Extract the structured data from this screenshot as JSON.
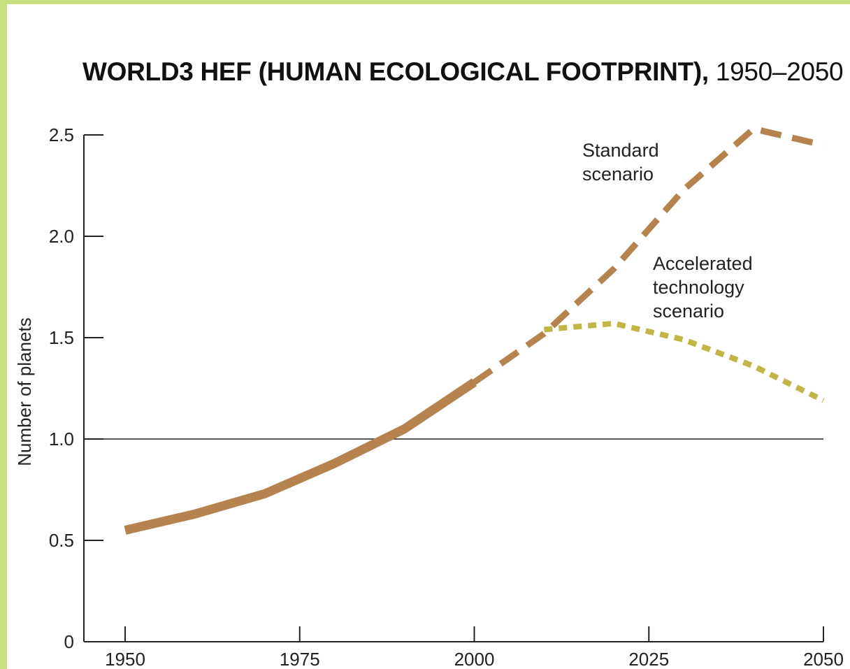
{
  "chart_data": {
    "type": "line",
    "title_bold": "WORLD3 HEF (HUMAN ECOLOGICAL FOOTPRINT),",
    "title_years": "1950–2050",
    "ylabel": "Number of planets",
    "xlabel": "",
    "xlim": [
      1950,
      2050
    ],
    "ylim": [
      0,
      2.5
    ],
    "x_ticks": [
      "1950",
      "1975",
      "2000",
      "2025",
      "2050"
    ],
    "y_ticks": [
      "0",
      "0.5",
      "1.0",
      "1.5",
      "2.0",
      "2.5"
    ],
    "reference_line": 1.0,
    "grid": false,
    "series": [
      {
        "key": "historical",
        "style": "solid",
        "color": "#b5834e",
        "x": [
          1950,
          1960,
          1970,
          1980,
          1990,
          2000
        ],
        "y": [
          0.55,
          0.63,
          0.73,
          0.88,
          1.05,
          1.28
        ]
      },
      {
        "key": "standard",
        "name_lines": [
          "Standard",
          "scenario"
        ],
        "style": "dashed",
        "color": "#b5834e",
        "x": [
          2000,
          2010,
          2020,
          2030,
          2040,
          2050
        ],
        "y": [
          1.28,
          1.52,
          1.84,
          2.23,
          2.53,
          2.45
        ]
      },
      {
        "key": "accelerated",
        "name_lines": [
          "Accelerated",
          "technology",
          "scenario"
        ],
        "style": "dotted",
        "color": "#c2b547",
        "x": [
          2010,
          2020,
          2030,
          2040,
          2050
        ],
        "y": [
          1.54,
          1.57,
          1.49,
          1.36,
          1.19
        ]
      }
    ]
  }
}
